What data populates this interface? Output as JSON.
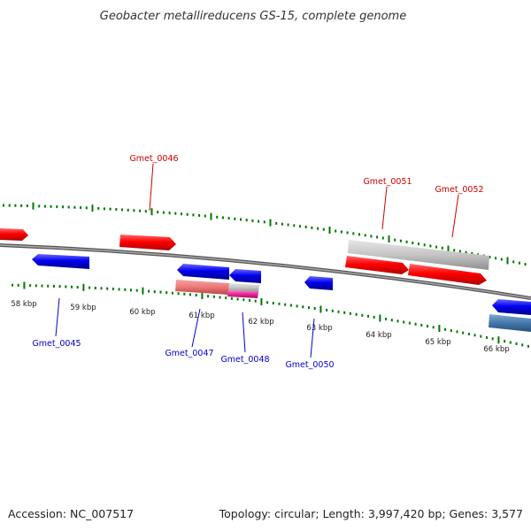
{
  "title": "Geobacter metallireducens GS-15, complete genome",
  "footer": {
    "accession": "Accession: NC_007517",
    "stats": "Topology: circular; Length: 3,997,420 bp; Genes: 3,577"
  },
  "colors": {
    "forward_gene": "#ff0000",
    "reverse_gene": "#0000ee",
    "forward_label": "#cc0000",
    "reverse_label": "#0000cc",
    "tick": "#007700",
    "backbone": "#888888",
    "gray_feature": "#bbbbbb",
    "pink_feature": "#ee7777",
    "magenta_feature": "#ee2299",
    "steel_feature": "#4477aa"
  },
  "scale_labels": [
    "58 kbp",
    "59 kbp",
    "60 kbp",
    "61 kbp",
    "62 kbp",
    "63 kbp",
    "64 kbp",
    "65 kbp",
    "66 kbp"
  ],
  "gene_labels": {
    "forward": [
      "Gmet_0046",
      "Gmet_0051",
      "Gmet_0052"
    ],
    "reverse": [
      "Gmet_0045",
      "Gmet_0047",
      "Gmet_0048",
      "Gmet_0050"
    ]
  }
}
